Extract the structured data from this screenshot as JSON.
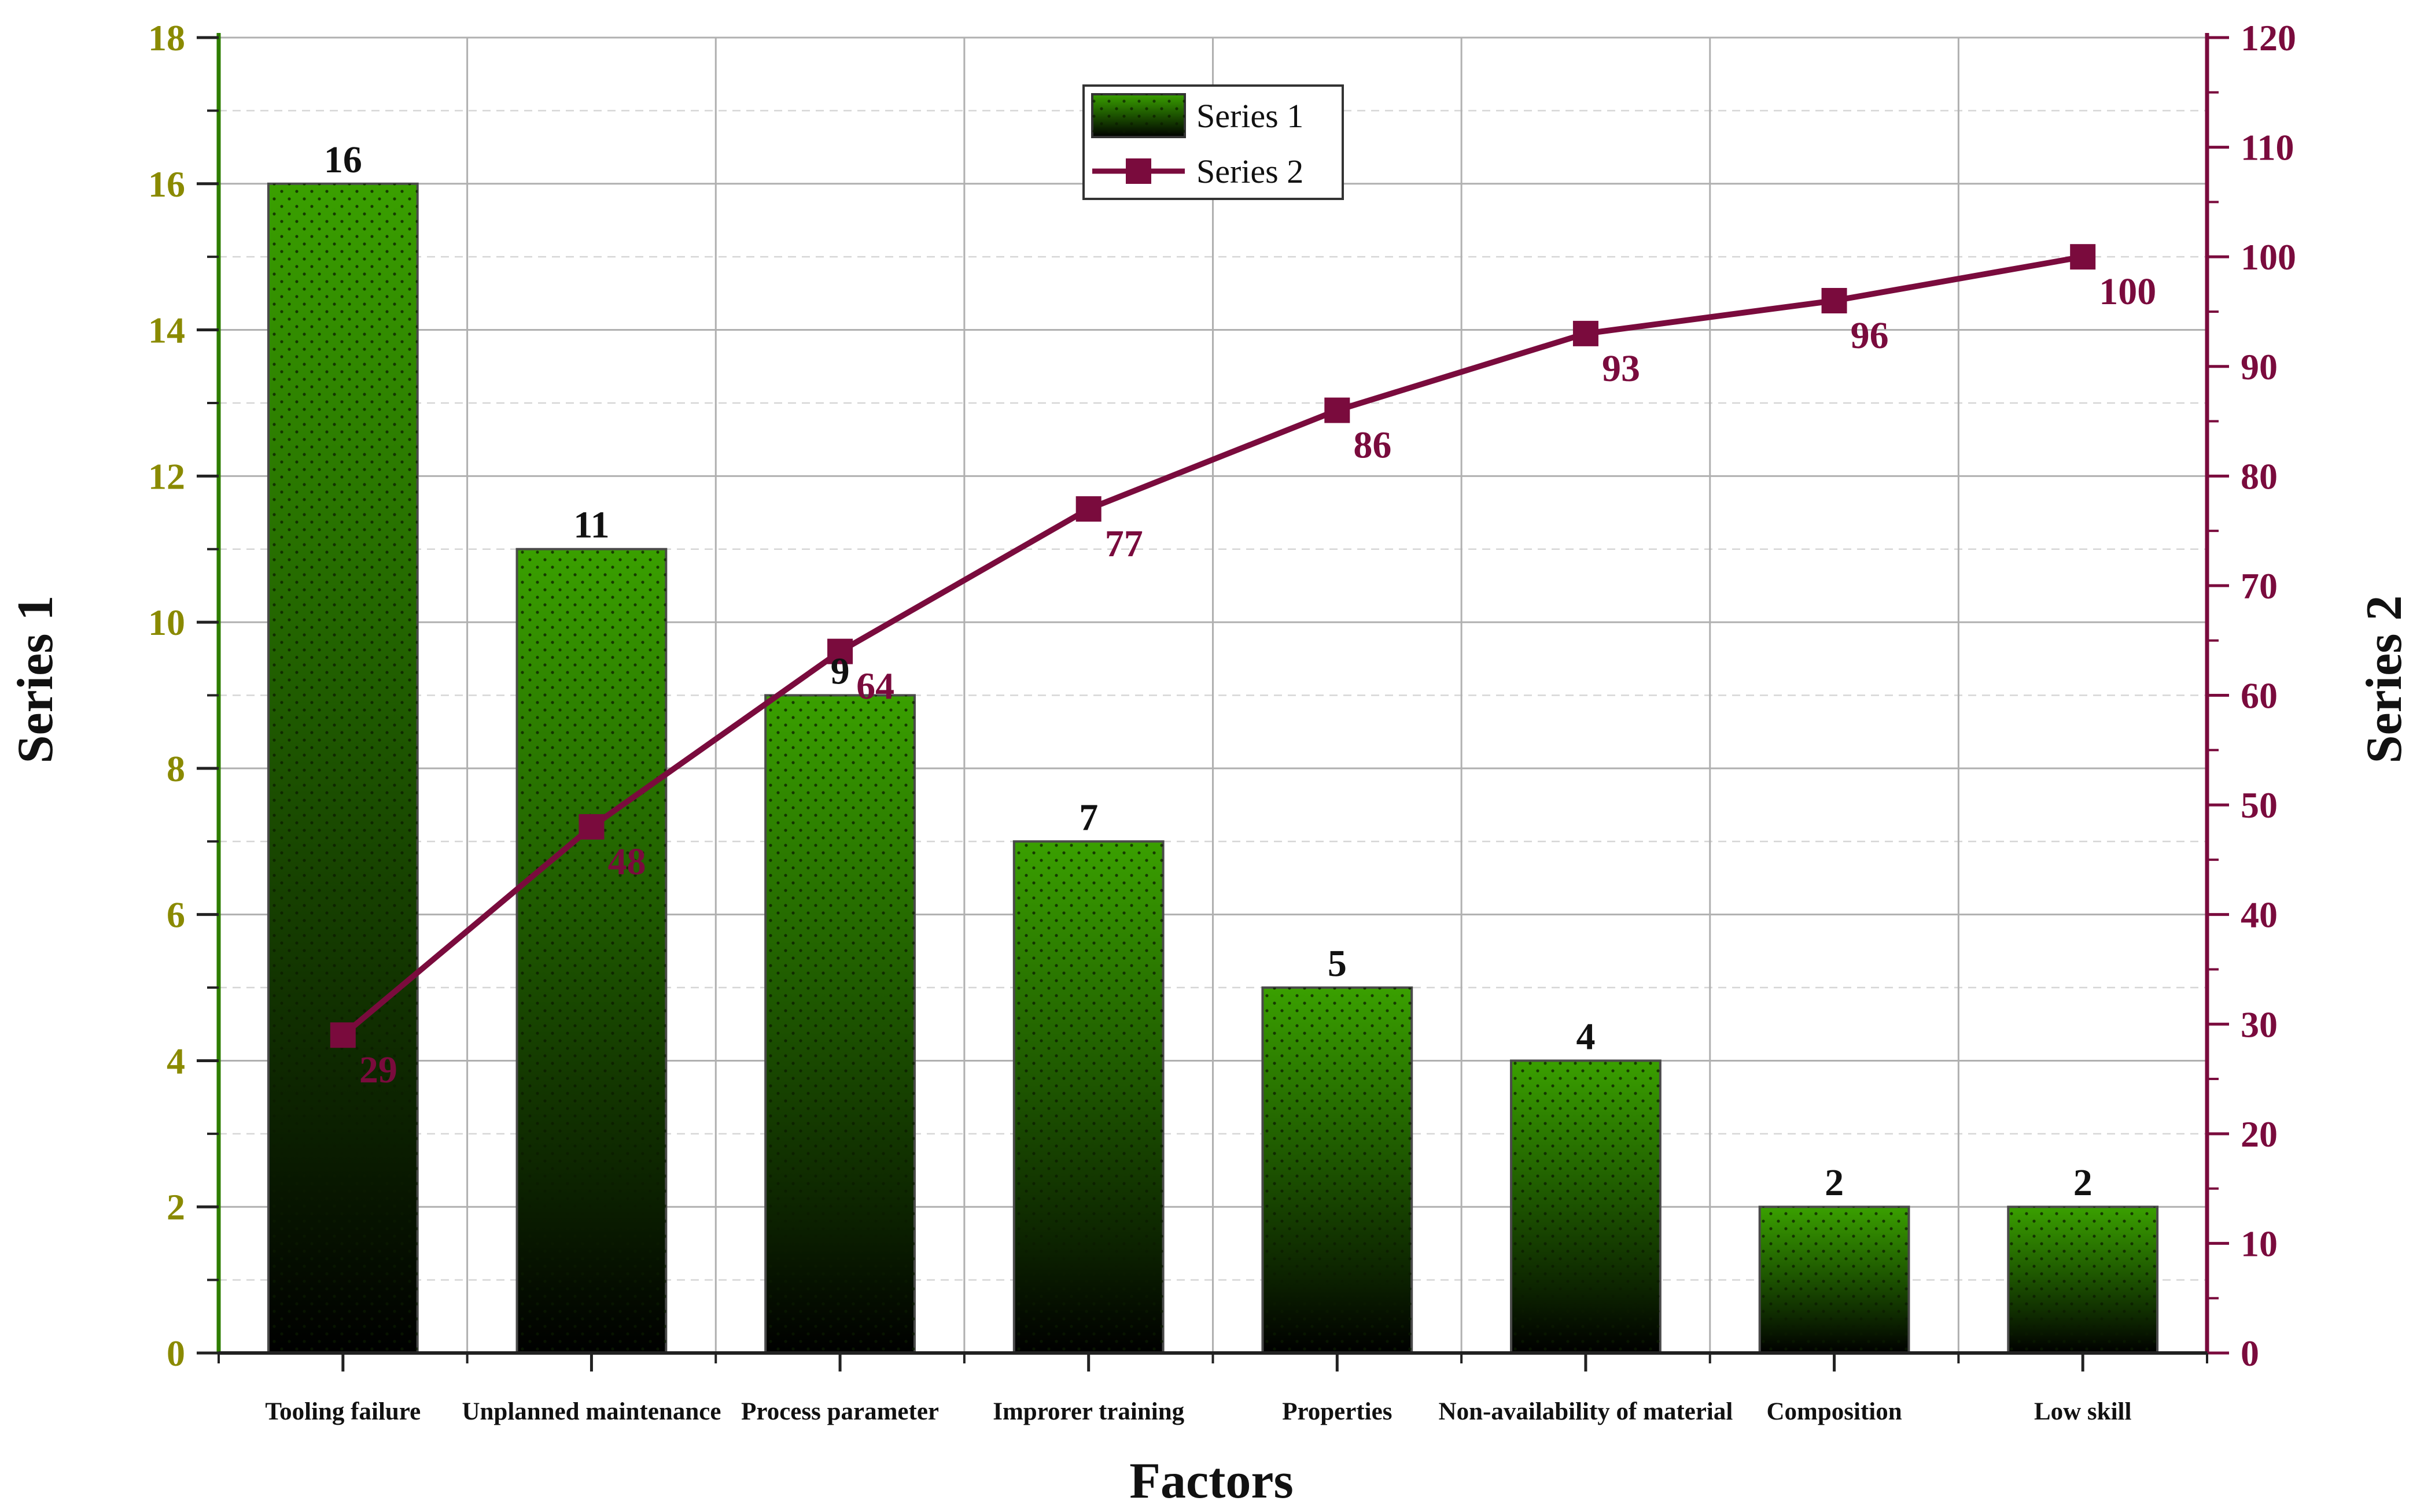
{
  "chart_data": {
    "type": "bar",
    "categories": [
      "Tooling failure",
      "Unplanned maintenance",
      "Process parameter",
      "Improrer training",
      "Properties",
      "Non-availability of material",
      "Composition",
      "Low skill"
    ],
    "series": [
      {
        "name": "Series 1",
        "type": "bar",
        "axis": "left",
        "values": [
          16,
          11,
          9,
          7,
          5,
          4,
          2,
          2
        ],
        "color": "#3aa000"
      },
      {
        "name": "Series 2",
        "type": "line",
        "axis": "right",
        "values": [
          29,
          48,
          64,
          77,
          86,
          93,
          96,
          100
        ],
        "color": "#7a0b3d"
      }
    ],
    "xlabel": "Factors",
    "ylabel": "Series 1",
    "y2label": "Series 2",
    "ylim": [
      0,
      18
    ],
    "y2lim": [
      0,
      120
    ],
    "yticks": [
      0,
      2,
      4,
      6,
      8,
      10,
      12,
      14,
      16,
      18
    ],
    "y2ticks": [
      0,
      10,
      20,
      30,
      40,
      50,
      60,
      70,
      80,
      90,
      100,
      110,
      120
    ],
    "grid": true,
    "legend": "top-center",
    "colors": {
      "left_axis": "#2e7d00",
      "left_ticks": "#8a8a00",
      "right_axis": "#7a0b3d"
    }
  }
}
